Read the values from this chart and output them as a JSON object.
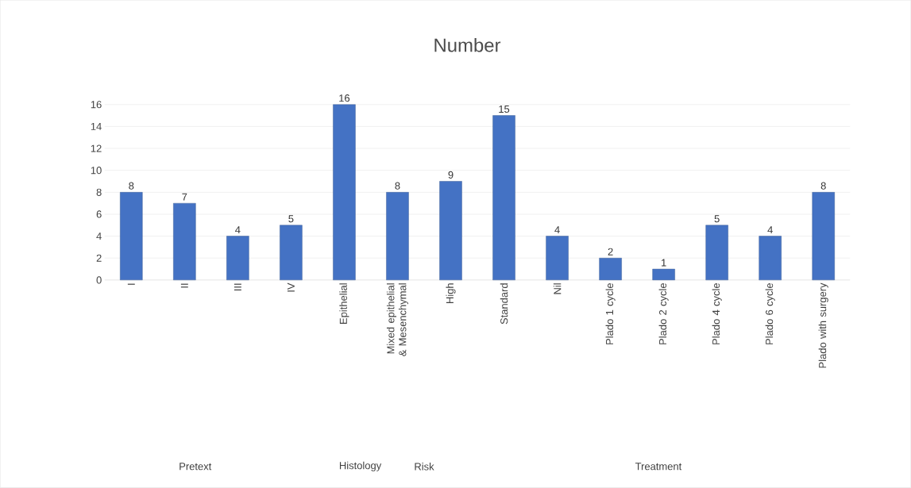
{
  "chart_data": {
    "type": "bar",
    "title": "Number",
    "categories": [
      "I",
      "II",
      "III",
      "IV",
      "Epithelial",
      "Mixed epithelial & Mesenchymal",
      "High",
      "Standard",
      "Nil",
      "Plado 1 cycle",
      "Plado 2 cycle",
      "Plado 4 cycle",
      "Plado 6 cycle",
      "Plado with surgery"
    ],
    "values": [
      8,
      7,
      4,
      5,
      16,
      8,
      9,
      15,
      4,
      2,
      1,
      5,
      4,
      8
    ],
    "color": "#4472c4",
    "ylim": [
      0,
      16
    ],
    "yticks": [
      0,
      2,
      4,
      6,
      8,
      10,
      12,
      14,
      16
    ],
    "grid": "y",
    "data_labels": true,
    "annotations": [
      "Pretext",
      "Histology",
      "Risk",
      "Treatment"
    ]
  }
}
